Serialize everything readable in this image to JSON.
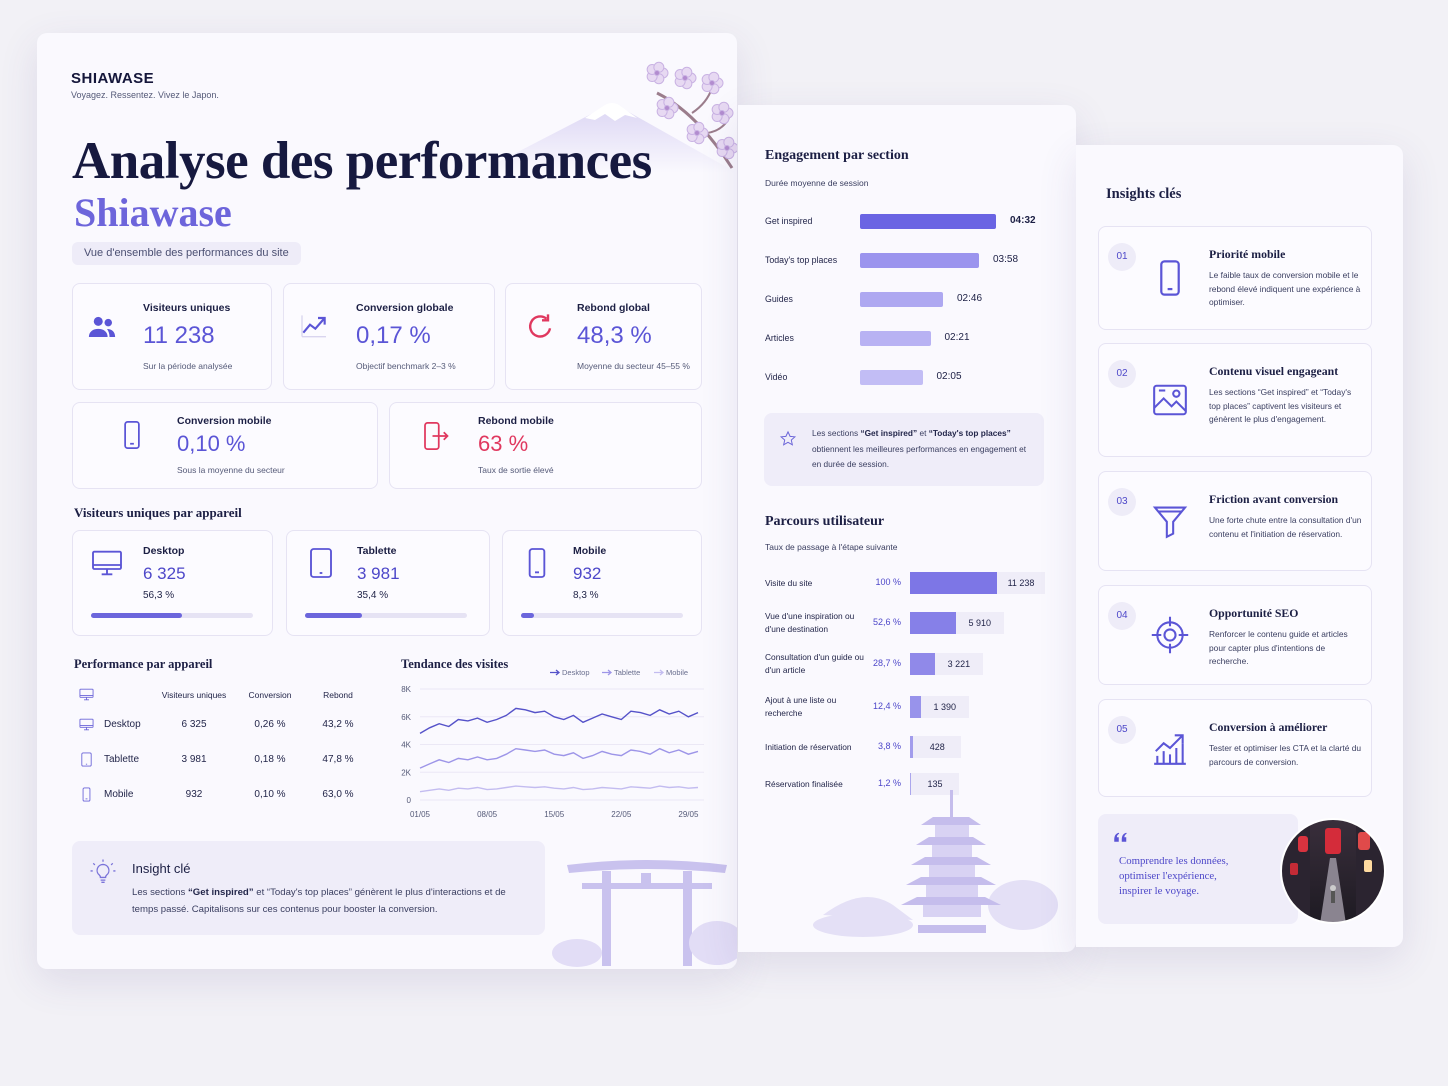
{
  "header": {
    "brand": "SHIAWASE",
    "tagline": "Voyagez. Ressentez. Vivez le Japon.",
    "title": "Analyse des performances",
    "subtitle": "Shiawase",
    "overview": "Vue d'ensemble des performances du site"
  },
  "kpis": [
    {
      "label": "Visiteurs uniques",
      "value": "11 238",
      "note": "Sur la période analysée",
      "color": "#5b55d6"
    },
    {
      "label": "Conversion globale",
      "value": "0,17 %",
      "note": "Objectif benchmark 2–3 %",
      "color": "#5b55d6"
    },
    {
      "label": "Rebond global",
      "value": "48,3 %",
      "note": "Moyenne du secteur 45–55 %",
      "color": "#5b55d6"
    },
    {
      "label": "Conversion mobile",
      "value": "0,10 %",
      "note": "Sous la moyenne du secteur",
      "color": "#5b55d6"
    },
    {
      "label": "Rebond mobile",
      "value": "63 %",
      "note": "Taux de sortie élevé",
      "color": "#e0385f"
    }
  ],
  "devices": {
    "title": "Visiteurs uniques par appareil",
    "names": [
      "Desktop",
      "Tablette",
      "Mobile"
    ],
    "counts": [
      "6 325",
      "3 981",
      "932"
    ],
    "values": [
      56.3,
      35.4,
      8.3
    ],
    "value_labels": [
      "56,3 %",
      "35,4 %",
      "8,3 %"
    ],
    "color": "#6c66dc"
  },
  "performance": {
    "title": "Performance par appareil",
    "columns": [
      "Visiteurs uniques",
      "Conversion",
      "Rebond"
    ],
    "rows": [
      [
        "Desktop",
        "6 325",
        "0,26 %",
        "43,2 %"
      ],
      [
        "Tablette",
        "3 981",
        "0,18 %",
        "47,8 %"
      ],
      [
        "Mobile",
        "932",
        "0,10 %",
        "63,0 %"
      ]
    ]
  },
  "chart_data": [
    {
      "type": "line",
      "title": "Tendance des visites",
      "categories": [
        "01/05",
        null,
        null,
        null,
        null,
        null,
        null,
        "08/05",
        null,
        null,
        null,
        null,
        null,
        null,
        "15/05",
        null,
        null,
        null,
        null,
        null,
        null,
        "22/05",
        null,
        null,
        null,
        null,
        null,
        null,
        "29/05",
        null
      ],
      "series": [
        {
          "name": "Desktop",
          "color": "#5552c9",
          "values": [
            4800,
            5200,
            5500,
            5300,
            5800,
            5700,
            5900,
            5600,
            5800,
            6100,
            6600,
            6500,
            6300,
            6400,
            6000,
            5800,
            6100,
            5600,
            5900,
            6200,
            6000,
            5800,
            6400,
            6300,
            6100,
            6500,
            6200,
            6400,
            6000,
            6300
          ]
        },
        {
          "name": "Tablette",
          "color": "#9d95e8",
          "values": [
            2300,
            2600,
            2900,
            2700,
            3000,
            2900,
            3100,
            2900,
            3000,
            3300,
            3700,
            3600,
            3500,
            3600,
            3300,
            3200,
            3400,
            3000,
            3200,
            3500,
            3300,
            3200,
            3600,
            3500,
            3300,
            3700,
            3400,
            3600,
            3300,
            3500
          ]
        },
        {
          "name": "Mobile",
          "color": "#c3bcf0",
          "values": [
            600,
            700,
            800,
            700,
            850,
            800,
            900,
            750,
            800,
            900,
            1000,
            950,
            900,
            950,
            850,
            800,
            900,
            750,
            800,
            900,
            850,
            800,
            950,
            900,
            850,
            1000,
            900,
            950,
            850,
            900
          ]
        }
      ],
      "ylim": [
        0,
        8000
      ],
      "yticks": [
        0,
        {
          "value": 2000,
          "label": "2K"
        },
        {
          "value": 4000,
          "label": "4K"
        },
        {
          "value": 6000,
          "label": "6K"
        },
        {
          "value": 8000,
          "label": "8K"
        }
      ],
      "grid": true
    },
    {
      "type": "bar",
      "title": "Engagement par section",
      "subtitle": "Durée moyenne de session",
      "categories": [
        "Get inspired",
        "Today's top places",
        "Guides",
        "Articles",
        "Vidéo"
      ],
      "values": [
        272,
        238,
        166,
        141,
        125
      ],
      "value_labels": [
        "04:32",
        "03:58",
        "02:46",
        "02:21",
        "02:05"
      ],
      "colors": [
        "#6a64e3",
        "#9b94ee",
        "#aea8f1",
        "#b8b2f3",
        "#c2bdf5"
      ],
      "annotation": [
        "Les sections ",
        "“Get inspired”",
        " et ",
        "“Today's top places”",
        " obtiennent les meilleures performances en engagement et en durée de session."
      ]
    },
    {
      "type": "bar",
      "title": "Parcours utilisateur",
      "subtitle": "Taux de passage à l'étape suivante",
      "categories": [
        "Visite du site",
        "Vue d'une inspiration ou d'une destination",
        "Consultation d'un guide ou d'un article",
        "Ajout à une liste ou recherche",
        "Initiation de réservation",
        "Réservation finalisée"
      ],
      "rates": [
        "100 %",
        "52,6 %",
        "28,7 %",
        "12,4 %",
        "3,8 %",
        "1,2 %"
      ],
      "values": [
        11238,
        5910,
        3221,
        1390,
        428,
        135
      ],
      "value_labels": [
        "11 238",
        "5 910",
        "3 221",
        "1 390",
        "428",
        "135"
      ],
      "color": "#7d76e6"
    }
  ],
  "insight": {
    "title": "Insight clé",
    "text": [
      "Les sections ",
      "“Get inspired”",
      " et “Today's top places” génèrent le plus d'interactions et de temps passé. Capitalisons sur ces contenus pour booster la conversion."
    ]
  },
  "insights": {
    "title": "Insights clés",
    "items": [
      {
        "num": "01",
        "title": "Priorité mobile",
        "text": "Le faible taux de conversion mobile et le rebond élevé indiquent une expérience à optimiser."
      },
      {
        "num": "02",
        "title": "Contenu visuel engageant",
        "text": "Les sections “Get inspired” et “Today's top places” captivent les visiteurs et génèrent le plus d'engagement."
      },
      {
        "num": "03",
        "title": "Friction avant conversion",
        "text": "Une forte chute entre la consultation d'un contenu et l'initiation de réservation."
      },
      {
        "num": "04",
        "title": "Opportunité SEO",
        "text": "Renforcer le contenu guide et articles pour capter plus d'intentions de recherche."
      },
      {
        "num": "05",
        "title": "Conversion à améliorer",
        "text": "Tester et optimiser les CTA et la clarté du parcours de conversion."
      }
    ],
    "quote": "Comprendre les données, optimiser l'expérience, inspirer le voyage."
  }
}
